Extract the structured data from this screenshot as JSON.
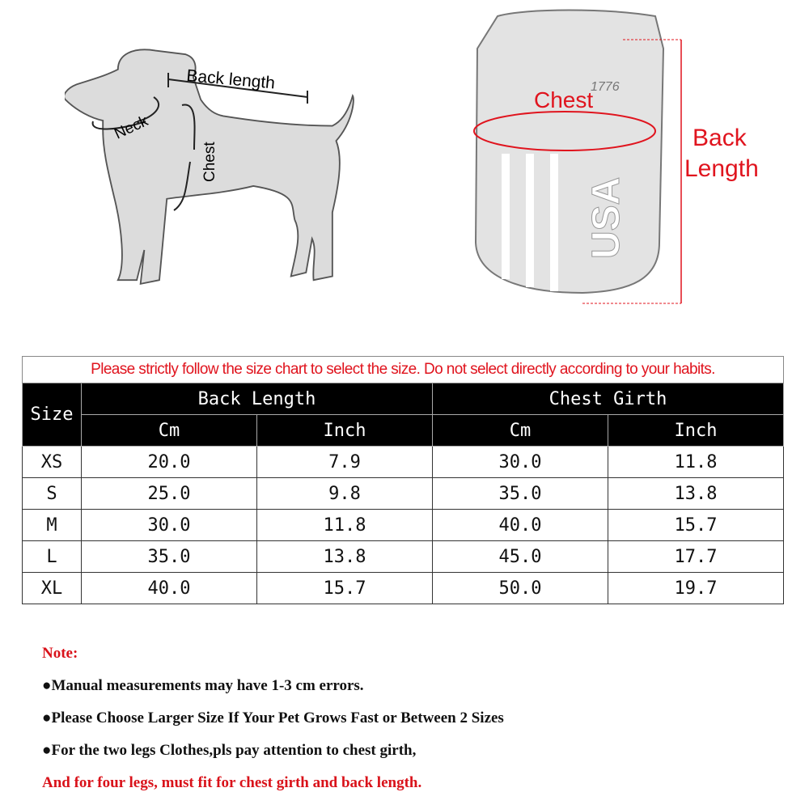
{
  "dog_diagram": {
    "back_length_label": "Back length",
    "neck_label": "Neck",
    "chest_label": "Chest"
  },
  "shirt_diagram": {
    "chest_label": "Chest",
    "back_length_label_line1": "Back",
    "back_length_label_line2": "Length",
    "print_text": "USA",
    "print_year": "1776",
    "accent_color": "#e0141e"
  },
  "size_table": {
    "notice": "Please strictly follow the size chart to select the size. Do not select directly according to your habits.",
    "headers": {
      "size": "Size",
      "back_length": "Back Length",
      "chest_girth": "Chest Girth",
      "cm": "Cm",
      "inch": "Inch"
    },
    "rows": [
      {
        "size": "XS",
        "back_cm": "20.0",
        "back_inch": "7.9",
        "chest_cm": "30.0",
        "chest_inch": "11.8"
      },
      {
        "size": "S",
        "back_cm": "25.0",
        "back_inch": "9.8",
        "chest_cm": "35.0",
        "chest_inch": "13.8"
      },
      {
        "size": "M",
        "back_cm": "30.0",
        "back_inch": "11.8",
        "chest_cm": "40.0",
        "chest_inch": "15.7"
      },
      {
        "size": "L",
        "back_cm": "35.0",
        "back_inch": "13.8",
        "chest_cm": "45.0",
        "chest_inch": "17.7"
      },
      {
        "size": "XL",
        "back_cm": "40.0",
        "back_inch": "15.7",
        "chest_cm": "50.0",
        "chest_inch": "19.7"
      }
    ]
  },
  "notes": {
    "title": "Note:",
    "lines": [
      "●Manual measurements may have 1-3 cm errors.",
      "●Please Choose Larger Size If Your Pet Grows Fast or Between 2 Sizes",
      "●For the two legs Clothes,pls pay attention to chest girth,",
      "And for four legs, must fit for chest girth and back length."
    ]
  }
}
